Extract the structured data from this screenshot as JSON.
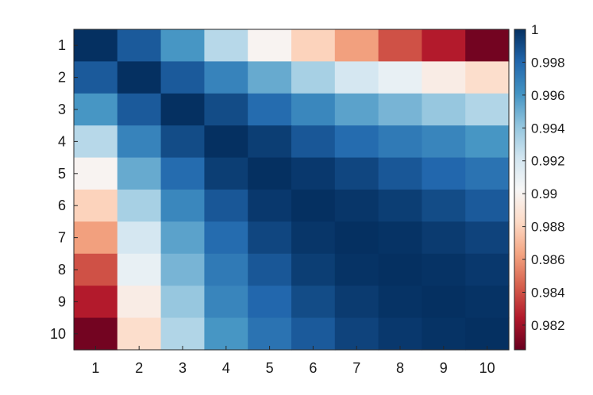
{
  "chart_data": {
    "type": "heatmap",
    "title": "",
    "xlabel": "",
    "ylabel": "",
    "x_categories": [
      "1",
      "2",
      "3",
      "4",
      "5",
      "6",
      "7",
      "8",
      "9",
      "10"
    ],
    "y_categories": [
      "1",
      "2",
      "3",
      "4",
      "5",
      "6",
      "7",
      "8",
      "9",
      "10"
    ],
    "values": [
      [
        1.0,
        0.9985,
        0.996,
        0.993,
        0.99,
        0.988,
        0.9862,
        0.984,
        0.9825,
        0.9808
      ],
      [
        0.9985,
        1.0,
        0.9985,
        0.9968,
        0.9952,
        0.9935,
        0.992,
        0.991,
        0.9895,
        0.9885
      ],
      [
        0.996,
        0.9985,
        1.0,
        0.999,
        0.9978,
        0.9966,
        0.9955,
        0.9948,
        0.994,
        0.9932
      ],
      [
        0.993,
        0.9968,
        0.999,
        1.0,
        0.9995,
        0.9986,
        0.9978,
        0.9972,
        0.9967,
        0.996
      ],
      [
        0.99,
        0.9952,
        0.9978,
        0.9995,
        1.0,
        0.9997,
        0.9992,
        0.9986,
        0.998,
        0.9975
      ],
      [
        0.988,
        0.9935,
        0.9966,
        0.9986,
        0.9997,
        1.0,
        0.9998,
        0.9995,
        0.999,
        0.9985
      ],
      [
        0.9862,
        0.992,
        0.9955,
        0.9978,
        0.9992,
        0.9998,
        1.0,
        0.9999,
        0.9996,
        0.9993
      ],
      [
        0.984,
        0.991,
        0.9948,
        0.9972,
        0.9986,
        0.9995,
        0.9999,
        1.0,
        0.9999,
        0.9997
      ],
      [
        0.9825,
        0.9895,
        0.994,
        0.9967,
        0.998,
        0.999,
        0.9996,
        0.9999,
        1.0,
        0.9999
      ],
      [
        0.9808,
        0.9885,
        0.9932,
        0.996,
        0.9975,
        0.9985,
        0.9993,
        0.9997,
        0.9999,
        1.0
      ]
    ],
    "colorbar": {
      "min": 0.9805,
      "max": 1.0,
      "ticks": [
        1.0,
        0.998,
        0.996,
        0.994,
        0.992,
        0.99,
        0.988,
        0.986,
        0.984,
        0.982
      ],
      "tick_labels": [
        "1",
        "0.998",
        "0.996",
        "0.994",
        "0.992",
        "0.99",
        "0.988",
        "0.986",
        "0.984",
        "0.982"
      ]
    },
    "colormap": [
      "#67001f",
      "#b2182b",
      "#d6604d",
      "#f4a582",
      "#fddbc7",
      "#f7f7f7",
      "#d1e5f0",
      "#92c5de",
      "#4393c3",
      "#2166ac",
      "#053061"
    ],
    "grid": false
  }
}
